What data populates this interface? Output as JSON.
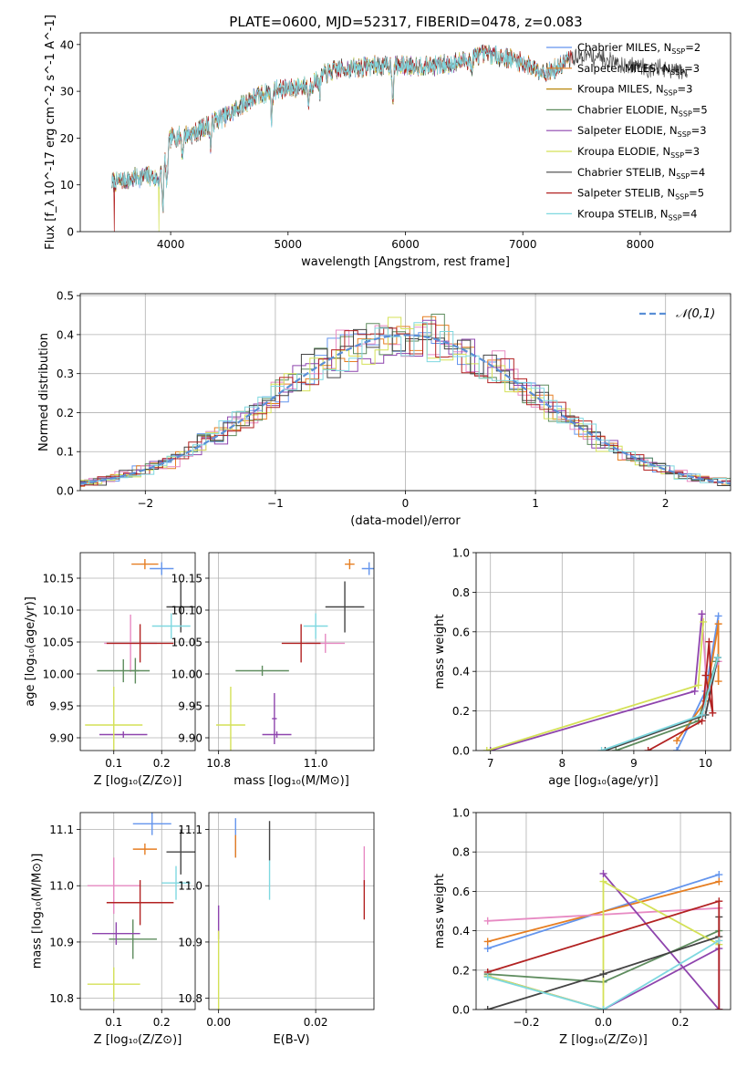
{
  "figure": {
    "title": "PLATE=0600, MJD=52317, FIBERID=0478, z=0.083"
  },
  "chart_data": [
    {
      "type": "line",
      "id": "spectrum",
      "xlabel": "wavelength [Angstrom, rest frame]",
      "ylabel": "Flux [f_λ 10^-17 erg cm^-2 s^-1 A^-1]",
      "xlim": [
        3230,
        8770
      ],
      "ylim": [
        0,
        42.5
      ],
      "xticks": [
        4000,
        5000,
        6000,
        7000,
        8000
      ],
      "yticks": [
        0,
        10,
        20,
        30,
        40
      ],
      "grid": false,
      "legend_position": "top-right",
      "continuum": [
        [
          3500,
          10.5
        ],
        [
          3700,
          11.5
        ],
        [
          3800,
          12
        ],
        [
          3900,
          11
        ],
        [
          4000,
          20
        ],
        [
          4100,
          20.5
        ],
        [
          4200,
          21
        ],
        [
          4300,
          22.5
        ],
        [
          4400,
          24
        ],
        [
          4500,
          25
        ],
        [
          4600,
          27
        ],
        [
          4700,
          28.5
        ],
        [
          4800,
          29.5
        ],
        [
          4900,
          30.5
        ],
        [
          5000,
          30.5
        ],
        [
          5100,
          31
        ],
        [
          5200,
          31.5
        ],
        [
          5300,
          33.5
        ],
        [
          5400,
          34.5
        ],
        [
          5500,
          35
        ],
        [
          5600,
          35
        ],
        [
          5700,
          35.5
        ],
        [
          5800,
          35.5
        ],
        [
          5900,
          35.5
        ],
        [
          6000,
          35.5
        ],
        [
          6100,
          35.5
        ],
        [
          6200,
          35.5
        ],
        [
          6300,
          35.5
        ],
        [
          6400,
          36
        ],
        [
          6500,
          36.5
        ],
        [
          6600,
          37.5
        ],
        [
          6700,
          38
        ],
        [
          6800,
          37.5
        ],
        [
          6900,
          37
        ],
        [
          7000,
          36
        ],
        [
          7100,
          35
        ],
        [
          7200,
          34
        ],
        [
          7300,
          35
        ],
        [
          7400,
          37
        ],
        [
          7500,
          37.5
        ],
        [
          7600,
          37.5
        ],
        [
          7700,
          37
        ],
        [
          7800,
          36
        ],
        [
          7900,
          35.5
        ],
        [
          8000,
          35.5
        ],
        [
          8100,
          35
        ],
        [
          8200,
          34.5
        ],
        [
          8300,
          34.5
        ],
        [
          8400,
          34
        ]
      ],
      "series": [
        {
          "name": "Chabrier MILES, N_SSP=2",
          "color": "#6495ED",
          "xmax": 7400,
          "dropout": null
        },
        {
          "name": "Salpeter MILES, N_SSP=3",
          "color": "#E67E22",
          "xmax": 7400,
          "dropout": 7420
        },
        {
          "name": "Kroupa MILES, N_SSP=3",
          "color": "#B8860B",
          "xmax": 7400,
          "dropout": null
        },
        {
          "name": "Chabrier ELODIE, N_SSP=5",
          "color": "#5E8C5E",
          "xmax": 6800,
          "dropout": null
        },
        {
          "name": "Salpeter ELODIE, N_SSP=3",
          "color": "#8E44AD",
          "xmax": 6800,
          "dropout": null
        },
        {
          "name": "Kroupa ELODIE, N_SSP=3",
          "color": "#D4E157",
          "xmax": 6800,
          "dropout": 3900
        },
        {
          "name": "Chabrier STELIB, N_SSP=4",
          "color": "#444444",
          "xmax": 8400,
          "dropout": null
        },
        {
          "name": "Salpeter STELIB, N_SSP=5",
          "color": "#B22222",
          "xmax": 7420,
          "dropout": 3520
        },
        {
          "name": "Kroupa STELIB, N_SSP=4",
          "color": "#7FD8E0",
          "xmax": 7400,
          "dropout": null
        }
      ],
      "absorption_dips": [
        [
          3934,
          9
        ],
        [
          3968,
          8
        ],
        [
          4101,
          4
        ],
        [
          4340,
          5
        ],
        [
          4861,
          6
        ],
        [
          5175,
          4
        ],
        [
          5270,
          3
        ],
        [
          5893,
          7
        ],
        [
          6563,
          3
        ]
      ]
    },
    {
      "type": "line",
      "id": "residuals",
      "xlabel": "(data-model)/error",
      "ylabel": "Normed distribution",
      "xlim": [
        -2.5,
        2.5
      ],
      "ylim": [
        0,
        0.505
      ],
      "xticks": [
        -2,
        -1,
        0,
        1,
        2
      ],
      "yticks": [
        0.0,
        0.1,
        0.2,
        0.3,
        0.4,
        0.5
      ],
      "grid": true,
      "legend": "𝒩(0,1)",
      "legend_position": "top-right",
      "hist_colors": [
        "#6495ED",
        "#E67E22",
        "#E78AC3",
        "#5E8C5E",
        "#8E44AD",
        "#D4E157",
        "#444444",
        "#B22222",
        "#7FD8E0"
      ]
    },
    {
      "type": "scatter",
      "id": "age-vs-Z",
      "xlabel": "Z [log₁₀(Z/Z⊙)]",
      "ylabel": "age  [log₁₀(age/yr)]",
      "xlim": [
        0.03,
        0.27
      ],
      "ylim": [
        9.88,
        10.19
      ],
      "xticks": [
        0.1,
        0.2
      ],
      "yticks": [
        9.9,
        9.95,
        10.0,
        10.05,
        10.1,
        10.15
      ],
      "grid": true,
      "points": [
        {
          "x": 0.2,
          "y": 10.165,
          "xerr": 0.025,
          "yerr": 0.01,
          "color": "#6495ED"
        },
        {
          "x": 0.165,
          "y": 10.172,
          "xerr": 0.028,
          "yerr": 0.008,
          "color": "#E67E22"
        },
        {
          "x": 0.135,
          "y": 10.048,
          "xerr": 0.055,
          "yerr": 0.045,
          "color": "#E78AC3"
        },
        {
          "x": 0.12,
          "y": 10.005,
          "xerr": 0.055,
          "yerr": 0.018,
          "color": "#5E8C5E"
        },
        {
          "x": 0.145,
          "y": 10.005,
          "xerr": 0.008,
          "yerr": 0.02,
          "color": "#5E8C5E"
        },
        {
          "x": 0.12,
          "y": 9.905,
          "xerr": 0.05,
          "yerr": 0.005,
          "color": "#8E44AD"
        },
        {
          "x": 0.1,
          "y": 9.92,
          "xerr": 0.06,
          "yerr": 0.06,
          "color": "#D4E157"
        },
        {
          "x": 0.24,
          "y": 10.105,
          "xerr": 0.03,
          "yerr": 0.04,
          "color": "#444444"
        },
        {
          "x": 0.155,
          "y": 10.048,
          "xerr": 0.07,
          "yerr": 0.03,
          "color": "#B22222"
        },
        {
          "x": 0.22,
          "y": 10.075,
          "xerr": 0.04,
          "yerr": 0.02,
          "color": "#7FD8E0"
        }
      ]
    },
    {
      "type": "scatter",
      "id": "age-vs-mass",
      "xlabel": "mass [log₁₀(M/M⊙)]",
      "ylabel": "",
      "xlim": [
        10.78,
        11.12
      ],
      "ylim": [
        9.88,
        10.19
      ],
      "xticks": [
        10.8,
        11.0
      ],
      "yticks": [
        9.9,
        9.95,
        10.0,
        10.05,
        10.1,
        10.15
      ],
      "grid": true,
      "points": [
        {
          "x": 11.11,
          "y": 10.165,
          "xerr": 0.015,
          "yerr": 0.01,
          "color": "#6495ED"
        },
        {
          "x": 11.07,
          "y": 10.172,
          "xerr": 0.01,
          "yerr": 0.008,
          "color": "#E67E22"
        },
        {
          "x": 11.02,
          "y": 10.048,
          "xerr": 0.04,
          "yerr": 0.015,
          "color": "#E78AC3"
        },
        {
          "x": 10.89,
          "y": 10.005,
          "xerr": 0.055,
          "yerr": 0.008,
          "color": "#5E8C5E"
        },
        {
          "x": 10.915,
          "y": 9.93,
          "xerr": 0.005,
          "yerr": 0.04,
          "color": "#8E44AD"
        },
        {
          "x": 10.92,
          "y": 9.905,
          "xerr": 0.03,
          "yerr": 0.005,
          "color": "#8E44AD"
        },
        {
          "x": 10.825,
          "y": 9.92,
          "xerr": 0.03,
          "yerr": 0.06,
          "color": "#D4E157"
        },
        {
          "x": 11.06,
          "y": 10.105,
          "xerr": 0.04,
          "yerr": 0.04,
          "color": "#444444"
        },
        {
          "x": 10.97,
          "y": 10.048,
          "xerr": 0.04,
          "yerr": 0.03,
          "color": "#B22222"
        },
        {
          "x": 11.0,
          "y": 10.075,
          "xerr": 0.025,
          "yerr": 0.02,
          "color": "#7FD8E0"
        }
      ]
    },
    {
      "type": "line",
      "id": "mass-weight-vs-age",
      "xlabel": "age  [log₁₀(age/yr)]",
      "ylabel": "mass weight",
      "xlim": [
        6.8,
        10.35
      ],
      "ylim": [
        0,
        1.0
      ],
      "xticks": [
        7,
        8,
        9,
        10
      ],
      "yticks": [
        0.0,
        0.2,
        0.4,
        0.6,
        0.8,
        1.0
      ],
      "grid": true,
      "series": [
        {
          "color": "#6495ED",
          "points": [
            [
              9.6,
              0.0
            ],
            [
              10.0,
              0.3
            ],
            [
              10.18,
              0.68
            ]
          ]
        },
        {
          "color": "#E67E22",
          "points": [
            [
              9.6,
              0.05
            ],
            [
              10.0,
              0.25
            ],
            [
              10.18,
              0.64
            ],
            [
              10.18,
              0.35
            ]
          ]
        },
        {
          "color": "#E78AC3",
          "points": [
            [
              9.95,
              0.69
            ],
            [
              10.02,
              0.3
            ],
            [
              10.18,
              0.45
            ]
          ]
        },
        {
          "color": "#5E8C5E",
          "points": [
            [
              8.75,
              0.0
            ],
            [
              9.9,
              0.15
            ],
            [
              10.15,
              0.45
            ]
          ]
        },
        {
          "color": "#8E44AD",
          "points": [
            [
              7.0,
              0.0
            ],
            [
              9.85,
              0.3
            ],
            [
              9.95,
              0.69
            ]
          ]
        },
        {
          "color": "#D4E157",
          "points": [
            [
              6.95,
              0.0
            ],
            [
              9.9,
              0.33
            ],
            [
              9.97,
              0.65
            ]
          ]
        },
        {
          "color": "#444444",
          "points": [
            [
              8.6,
              0.0
            ],
            [
              10.0,
              0.18
            ],
            [
              10.17,
              0.47
            ]
          ]
        },
        {
          "color": "#B22222",
          "points": [
            [
              9.2,
              0.0
            ],
            [
              9.95,
              0.15
            ],
            [
              10.05,
              0.55
            ],
            [
              10.1,
              0.19
            ],
            [
              10.0,
              0.38
            ]
          ]
        },
        {
          "color": "#7FD8E0",
          "points": [
            [
              8.55,
              0.0
            ],
            [
              9.95,
              0.18
            ],
            [
              10.17,
              0.47
            ]
          ]
        }
      ]
    },
    {
      "type": "scatter",
      "id": "mass-vs-Z",
      "xlabel": "Z [log₁₀(Z/Z⊙)]",
      "ylabel": "mass [log₁₀(M/M⊙)]",
      "xlim": [
        0.03,
        0.27
      ],
      "ylim": [
        10.78,
        11.13
      ],
      "xticks": [
        0.1,
        0.2
      ],
      "yticks": [
        10.8,
        10.9,
        11.0,
        11.1
      ],
      "grid": true,
      "points": [
        {
          "x": 0.18,
          "y": 11.11,
          "xerr": 0.04,
          "yerr": 0.02,
          "color": "#6495ED"
        },
        {
          "x": 0.165,
          "y": 11.065,
          "xerr": 0.025,
          "yerr": 0.01,
          "color": "#E67E22"
        },
        {
          "x": 0.1,
          "y": 11.0,
          "xerr": 0.055,
          "yerr": 0.05,
          "color": "#E78AC3"
        },
        {
          "x": 0.14,
          "y": 10.905,
          "xerr": 0.05,
          "yerr": 0.035,
          "color": "#5E8C5E"
        },
        {
          "x": 0.105,
          "y": 10.915,
          "xerr": 0.05,
          "yerr": 0.02,
          "color": "#8E44AD"
        },
        {
          "x": 0.1,
          "y": 10.825,
          "xerr": 0.055,
          "yerr": 0.03,
          "color": "#D4E157"
        },
        {
          "x": 0.24,
          "y": 11.06,
          "xerr": 0.03,
          "yerr": 0.04,
          "color": "#444444"
        },
        {
          "x": 0.155,
          "y": 10.97,
          "xerr": 0.07,
          "yerr": 0.04,
          "color": "#B22222"
        },
        {
          "x": 0.23,
          "y": 11.005,
          "xerr": 0.03,
          "yerr": 0.03,
          "color": "#7FD8E0"
        }
      ]
    },
    {
      "type": "scatter",
      "id": "mass-vs-ebv",
      "xlabel": "E(B-V)",
      "ylabel": "",
      "xlim": [
        -0.002,
        0.032
      ],
      "ylim": [
        10.78,
        11.13
      ],
      "xticks": [
        0.0,
        0.02
      ],
      "yticks": [
        10.8,
        10.9,
        11.0,
        11.1
      ],
      "grid": true,
      "points": [
        {
          "x": 0.0035,
          "y": 11.085,
          "yerr": 0.035,
          "color": "#6495ED"
        },
        {
          "x": 0.0035,
          "y": 11.07,
          "yerr": 0.02,
          "color": "#E67E22"
        },
        {
          "x": 0.0,
          "y": 10.935,
          "yerr": 0.03,
          "color": "#8E44AD"
        },
        {
          "x": 0.0,
          "y": 10.85,
          "yerr": 0.07,
          "color": "#D4E157"
        },
        {
          "x": 0.0105,
          "y": 11.08,
          "yerr": 0.035,
          "color": "#444444"
        },
        {
          "x": 0.0105,
          "y": 11.01,
          "yerr": 0.035,
          "color": "#7FD8E0"
        },
        {
          "x": 0.03,
          "y": 11.035,
          "yerr": 0.035,
          "color": "#E78AC3"
        },
        {
          "x": 0.03,
          "y": 10.975,
          "yerr": 0.035,
          "color": "#B22222"
        }
      ]
    },
    {
      "type": "line",
      "id": "mass-weight-vs-Z",
      "xlabel": "Z [log₁₀(Z/Z⊙)]",
      "ylabel": "mass weight",
      "xlim": [
        -0.33,
        0.33
      ],
      "ylim": [
        0,
        1.0
      ],
      "xticks": [
        -0.2,
        0.0,
        0.2
      ],
      "yticks": [
        0.0,
        0.2,
        0.4,
        0.6,
        0.8,
        1.0
      ],
      "grid": true,
      "series": [
        {
          "color": "#6495ED",
          "points": [
            [
              -0.3,
              0.31
            ],
            [
              0.3,
              0.685
            ]
          ]
        },
        {
          "color": "#E67E22",
          "points": [
            [
              -0.3,
              0.345
            ],
            [
              0.3,
              0.65
            ]
          ]
        },
        {
          "color": "#E78AC3",
          "points": [
            [
              -0.3,
              0.45
            ],
            [
              0.3,
              0.515
            ]
          ]
        },
        {
          "color": "#5E8C5E",
          "points": [
            [
              -0.3,
              0.18
            ],
            [
              0.0,
              0.14
            ],
            [
              0.3,
              0.4
            ]
          ]
        },
        {
          "color": "#8E44AD",
          "points": [
            [
              -0.3,
              0.17
            ],
            [
              0.0,
              0.0
            ],
            [
              0.3,
              0.31
            ],
            [
              0.3,
              0.0
            ],
            [
              0.0,
              0.69
            ]
          ]
        },
        {
          "color": "#D4E157",
          "points": [
            [
              -0.3,
              0.17
            ],
            [
              0.0,
              0.0
            ],
            [
              0.0,
              0.65
            ],
            [
              0.3,
              0.33
            ]
          ]
        },
        {
          "color": "#444444",
          "points": [
            [
              -0.3,
              0.0
            ],
            [
              0.0,
              0.18
            ],
            [
              0.3,
              0.37
            ],
            [
              0.3,
              0.47
            ]
          ]
        },
        {
          "color": "#B22222",
          "points": [
            [
              -0.3,
              0.19
            ],
            [
              0.3,
              0.55
            ],
            [
              0.3,
              0.0
            ]
          ]
        },
        {
          "color": "#7FD8E0",
          "points": [
            [
              -0.3,
              0.165
            ],
            [
              0.0,
              0.0
            ],
            [
              0.3,
              0.35
            ]
          ]
        }
      ]
    }
  ]
}
